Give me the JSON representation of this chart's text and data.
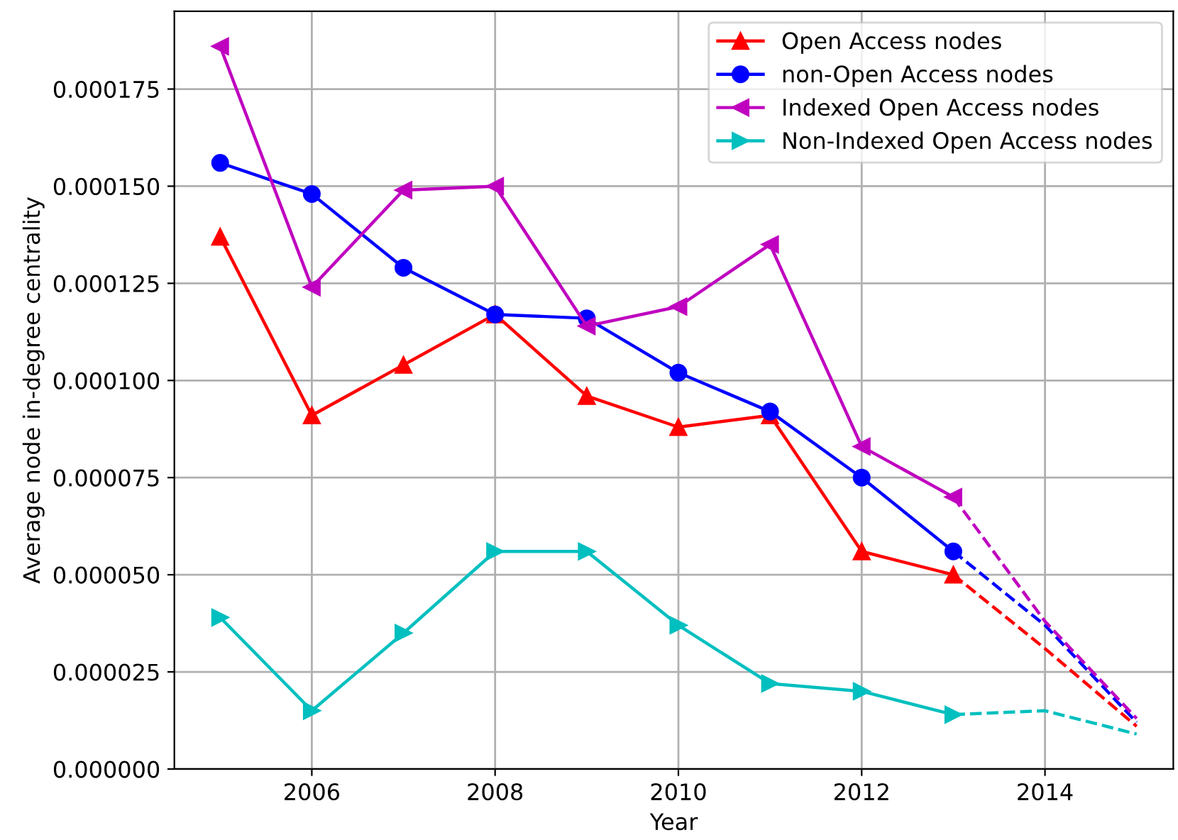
{
  "chart_data": {
    "type": "line",
    "xlabel": "Year",
    "ylabel": "Average node in-degree centrality",
    "xlim": [
      2004.5,
      2015.4
    ],
    "xticks": [
      2006,
      2008,
      2010,
      2012,
      2014
    ],
    "ylim": [
      0,
      0.000195
    ],
    "yticks": [
      {
        "value": 0,
        "label": "0.000000"
      },
      {
        "value": 2.5e-05,
        "label": "0.000025"
      },
      {
        "value": 5e-05,
        "label": "0.000050"
      },
      {
        "value": 7.5e-05,
        "label": "0.000075"
      },
      {
        "value": 0.0001,
        "label": "0.000100"
      },
      {
        "value": 0.000125,
        "label": "0.000125"
      },
      {
        "value": 0.00015,
        "label": "0.000150"
      },
      {
        "value": 0.000175,
        "label": "0.000175"
      }
    ],
    "grid": true,
    "legend": "top right",
    "series": [
      {
        "name": "Open Access nodes",
        "color": "#ff0000",
        "marker": "triangle",
        "line_style": "solid",
        "x": [
          2005,
          2006,
          2007,
          2008,
          2009,
          2010,
          2011,
          2012,
          2013
        ],
        "values": [
          0.000137,
          9.1e-05,
          0.000104,
          0.000117,
          9.6e-05,
          8.8e-05,
          9.1e-05,
          5.6e-05,
          5e-05
        ]
      },
      {
        "name": "non-Open Access nodes",
        "color": "#0000ff",
        "marker": "circle",
        "line_style": "solid",
        "x": [
          2005,
          2006,
          2007,
          2008,
          2009,
          2010,
          2011,
          2012,
          2013
        ],
        "values": [
          0.000156,
          0.000148,
          0.000129,
          0.000117,
          0.000116,
          0.000102,
          9.2e-05,
          7.5e-05,
          5.6e-05
        ]
      },
      {
        "name": "Indexed Open Access nodes",
        "color": "#bf00bf",
        "marker": "triangle-left",
        "line_style": "solid",
        "x": [
          2005,
          2006,
          2007,
          2008,
          2009,
          2010,
          2011,
          2012,
          2013
        ],
        "values": [
          0.000186,
          0.000124,
          0.000149,
          0.00015,
          0.000114,
          0.000119,
          0.000135,
          8.3e-05,
          7e-05
        ]
      },
      {
        "name": "Non-Indexed Open Access nodes",
        "color": "#00bfbf",
        "marker": "triangle-right",
        "line_style": "solid",
        "x": [
          2005,
          2006,
          2007,
          2008,
          2009,
          2010,
          2011,
          2012,
          2013
        ],
        "values": [
          3.9e-05,
          1.5e-05,
          3.5e-05,
          5.6e-05,
          5.6e-05,
          3.7e-05,
          2.2e-05,
          2e-05,
          1.4e-05
        ]
      },
      {
        "color": "#ff0000",
        "marker": "none",
        "line_style": "dashed",
        "x": [
          2013,
          2014,
          2015
        ],
        "values": [
          5e-05,
          3.1e-05,
          1.1e-05
        ]
      },
      {
        "color": "#0000ff",
        "marker": "none",
        "line_style": "dashed",
        "x": [
          2013,
          2014,
          2015
        ],
        "values": [
          5.6e-05,
          3.7e-05,
          1.2e-05
        ]
      },
      {
        "color": "#bf00bf",
        "marker": "none",
        "line_style": "dashed",
        "x": [
          2013,
          2014,
          2015
        ],
        "values": [
          7e-05,
          3.8e-05,
          1.3e-05
        ]
      },
      {
        "color": "#00bfbf",
        "marker": "none",
        "line_style": "dashed",
        "x": [
          2013,
          2014,
          2015
        ],
        "values": [
          1.4e-05,
          1.5e-05,
          9e-06
        ]
      }
    ]
  }
}
